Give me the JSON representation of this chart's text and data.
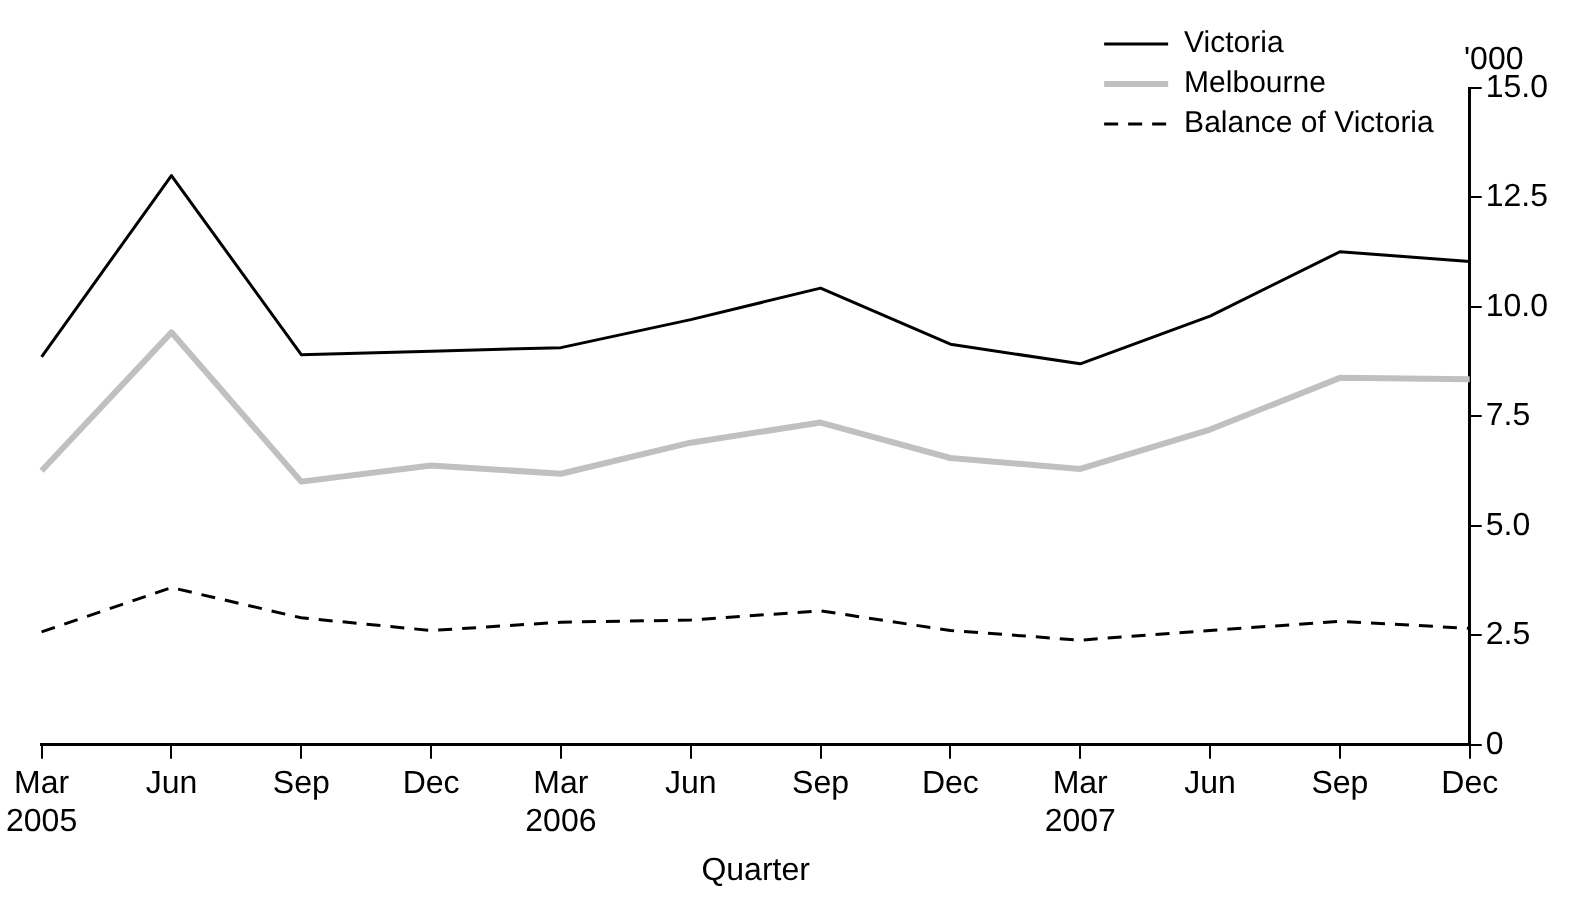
{
  "chart_data": {
    "type": "line",
    "xlabel": "Quarter",
    "ylabel": "'000",
    "categories": [
      "Mar 2005",
      "Jun",
      "Sep",
      "Dec",
      "Mar 2006",
      "Jun",
      "Sep",
      "Dec",
      "Mar 2007",
      "Jun",
      "Sep",
      "Dec"
    ],
    "series": [
      {
        "name": "Victoria",
        "color": "#000000",
        "line_style": "solid",
        "values": [
          8.86,
          13.0,
          8.91,
          8.99,
          9.07,
          9.71,
          10.43,
          9.15,
          8.7,
          9.79,
          11.26,
          11.04
        ]
      },
      {
        "name": "Melbourne",
        "color": "#c0c0c0",
        "line_style": "solid",
        "values": [
          6.26,
          9.42,
          6.01,
          6.38,
          6.19,
          6.9,
          7.36,
          6.55,
          6.3,
          7.2,
          8.38,
          8.35
        ]
      },
      {
        "name": "Balance of Victoria",
        "color": "#000000",
        "line_style": "dashed",
        "values": [
          2.58,
          3.59,
          2.9,
          2.61,
          2.8,
          2.85,
          3.06,
          2.61,
          2.39,
          2.61,
          2.82,
          2.66
        ]
      }
    ],
    "ylim": [
      0,
      15
    ],
    "yticks": [
      0,
      {
        "value": 2.5,
        "label": "2.5"
      },
      {
        "value": 5,
        "label": "5.0"
      },
      {
        "value": 7.5,
        "label": "7.5"
      },
      {
        "value": 10,
        "label": "10.0"
      },
      {
        "value": 12.5,
        "label": "12.5"
      },
      {
        "value": 15,
        "label": "15.0"
      }
    ],
    "grid": false,
    "legend": "top right",
    "marker": "none"
  }
}
